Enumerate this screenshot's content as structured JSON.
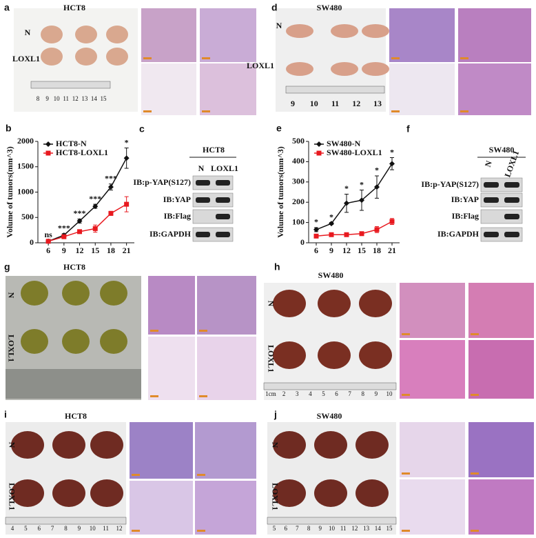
{
  "panels": {
    "a": {
      "label": "a",
      "title": "HCT8",
      "rows": [
        "N",
        "LOXL1"
      ],
      "ruler": [
        "8",
        "9",
        "10",
        "11",
        "12",
        "13",
        "14",
        "15"
      ]
    },
    "d": {
      "label": "d",
      "title": "SW480",
      "rows": [
        "N",
        "LOXL1"
      ],
      "ruler": [
        "9",
        "10",
        "11",
        "12",
        "13"
      ]
    },
    "b": {
      "label": "b"
    },
    "e": {
      "label": "e"
    },
    "c": {
      "label": "c",
      "title": "HCT8",
      "lanes": [
        "N",
        "LOXL1"
      ],
      "rows": [
        "IB:p-YAP(S127)",
        "IB:YAP",
        "IB:Flag",
        "IB:GAPDH"
      ]
    },
    "f": {
      "label": "f",
      "title": "SW480",
      "lanes": [
        "N",
        "LOXL1"
      ],
      "rows": [
        "IB:p-YAP(S127)",
        "IB:YAP",
        "IB:Flag",
        "IB:GAPDH"
      ]
    },
    "g": {
      "label": "g",
      "title": "HCT8",
      "rows": [
        "N",
        "LOXL1"
      ]
    },
    "h": {
      "label": "h",
      "title": "SW480",
      "rows": [
        "N",
        "LOXL1"
      ],
      "ruler": [
        "1cm",
        "2",
        "3",
        "4",
        "5",
        "6",
        "7",
        "8",
        "9",
        "10"
      ]
    },
    "i": {
      "label": "i",
      "title": "HCT8",
      "rows": [
        "N",
        "LOXL1"
      ],
      "ruler": [
        "4",
        "5",
        "6",
        "7",
        "8",
        "9",
        "10",
        "11",
        "12"
      ]
    },
    "j": {
      "label": "j",
      "title": "SW480",
      "rows": [
        "N",
        "LOXL1"
      ],
      "ruler": [
        "5",
        "6",
        "7",
        "8",
        "9",
        "10",
        "11",
        "12",
        "13",
        "14",
        "15"
      ]
    }
  },
  "chart_data": [
    {
      "type": "line",
      "ylabel": "Volume of tumors(mm^3)",
      "x": [
        6,
        9,
        12,
        15,
        18,
        21
      ],
      "xlim": [
        4,
        22.5
      ],
      "xticks": [
        6,
        9,
        12,
        15,
        18,
        21
      ],
      "ylim": [
        0,
        2000
      ],
      "yticks": [
        0,
        500,
        1000,
        1500,
        2000
      ],
      "legend": "upper left",
      "series": [
        {
          "name": "HCT8-N",
          "color": "#111111",
          "marker": "diamond",
          "values": [
            30,
            150,
            430,
            720,
            1100,
            1670
          ],
          "errors": [
            20,
            30,
            40,
            40,
            60,
            200
          ]
        },
        {
          "name": "HCT8-LOXL1",
          "color": "#e8191f",
          "marker": "square",
          "values": [
            30,
            120,
            220,
            280,
            580,
            760
          ],
          "errors": [
            10,
            20,
            30,
            70,
            40,
            150
          ]
        }
      ],
      "annotations": [
        "ns",
        "***",
        "***",
        "***",
        "***",
        "*"
      ]
    },
    {
      "type": "line",
      "ylabel": "Volume of tumors(mm^3)",
      "x": [
        6,
        9,
        12,
        15,
        18,
        21
      ],
      "xlim": [
        4.5,
        22.5
      ],
      "xticks": [
        6,
        9,
        12,
        15,
        18,
        21
      ],
      "ylim": [
        0,
        500
      ],
      "yticks": [
        0,
        100,
        200,
        300,
        400,
        500
      ],
      "legend": "upper left",
      "series": [
        {
          "name": "SW480-N",
          "color": "#111111",
          "marker": "diamond",
          "values": [
            65,
            95,
            195,
            210,
            275,
            390
          ],
          "errors": [
            10,
            5,
            45,
            50,
            55,
            30
          ]
        },
        {
          "name": "SW480-LOXL1",
          "color": "#e8191f",
          "marker": "square",
          "values": [
            33,
            40,
            40,
            45,
            65,
            105
          ],
          "errors": [
            5,
            5,
            5,
            8,
            15,
            15
          ]
        }
      ],
      "annotations": [
        "*",
        "*",
        "*",
        "*",
        "*",
        "*"
      ]
    }
  ]
}
